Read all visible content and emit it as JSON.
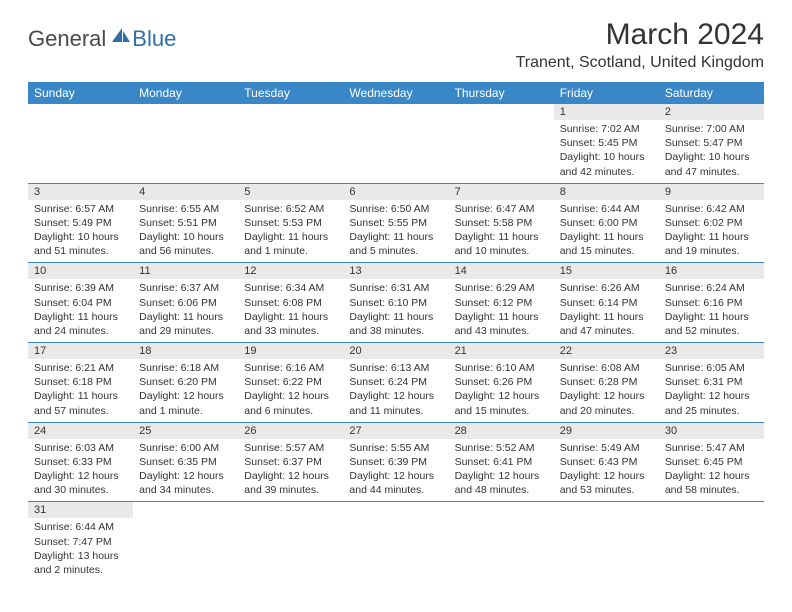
{
  "colors": {
    "header_bg": "#3a87c7",
    "header_text": "#ffffff",
    "daynum_bg": "#e9e9e9",
    "cell_border": "#3a87c7",
    "logo_blue": "#2f6fa8",
    "body_text": "#333333"
  },
  "logo": {
    "general": "General",
    "blue": "Blue"
  },
  "title": "March 2024",
  "location": "Tranent, Scotland, United Kingdom",
  "weekdays": [
    "Sunday",
    "Monday",
    "Tuesday",
    "Wednesday",
    "Thursday",
    "Friday",
    "Saturday"
  ],
  "weeks": [
    [
      null,
      null,
      null,
      null,
      null,
      {
        "num": "1",
        "sunrise": "Sunrise: 7:02 AM",
        "sunset": "Sunset: 5:45 PM",
        "daylight": "Daylight: 10 hours and 42 minutes."
      },
      {
        "num": "2",
        "sunrise": "Sunrise: 7:00 AM",
        "sunset": "Sunset: 5:47 PM",
        "daylight": "Daylight: 10 hours and 47 minutes."
      }
    ],
    [
      {
        "num": "3",
        "sunrise": "Sunrise: 6:57 AM",
        "sunset": "Sunset: 5:49 PM",
        "daylight": "Daylight: 10 hours and 51 minutes."
      },
      {
        "num": "4",
        "sunrise": "Sunrise: 6:55 AM",
        "sunset": "Sunset: 5:51 PM",
        "daylight": "Daylight: 10 hours and 56 minutes."
      },
      {
        "num": "5",
        "sunrise": "Sunrise: 6:52 AM",
        "sunset": "Sunset: 5:53 PM",
        "daylight": "Daylight: 11 hours and 1 minute."
      },
      {
        "num": "6",
        "sunrise": "Sunrise: 6:50 AM",
        "sunset": "Sunset: 5:55 PM",
        "daylight": "Daylight: 11 hours and 5 minutes."
      },
      {
        "num": "7",
        "sunrise": "Sunrise: 6:47 AM",
        "sunset": "Sunset: 5:58 PM",
        "daylight": "Daylight: 11 hours and 10 minutes."
      },
      {
        "num": "8",
        "sunrise": "Sunrise: 6:44 AM",
        "sunset": "Sunset: 6:00 PM",
        "daylight": "Daylight: 11 hours and 15 minutes."
      },
      {
        "num": "9",
        "sunrise": "Sunrise: 6:42 AM",
        "sunset": "Sunset: 6:02 PM",
        "daylight": "Daylight: 11 hours and 19 minutes."
      }
    ],
    [
      {
        "num": "10",
        "sunrise": "Sunrise: 6:39 AM",
        "sunset": "Sunset: 6:04 PM",
        "daylight": "Daylight: 11 hours and 24 minutes."
      },
      {
        "num": "11",
        "sunrise": "Sunrise: 6:37 AM",
        "sunset": "Sunset: 6:06 PM",
        "daylight": "Daylight: 11 hours and 29 minutes."
      },
      {
        "num": "12",
        "sunrise": "Sunrise: 6:34 AM",
        "sunset": "Sunset: 6:08 PM",
        "daylight": "Daylight: 11 hours and 33 minutes."
      },
      {
        "num": "13",
        "sunrise": "Sunrise: 6:31 AM",
        "sunset": "Sunset: 6:10 PM",
        "daylight": "Daylight: 11 hours and 38 minutes."
      },
      {
        "num": "14",
        "sunrise": "Sunrise: 6:29 AM",
        "sunset": "Sunset: 6:12 PM",
        "daylight": "Daylight: 11 hours and 43 minutes."
      },
      {
        "num": "15",
        "sunrise": "Sunrise: 6:26 AM",
        "sunset": "Sunset: 6:14 PM",
        "daylight": "Daylight: 11 hours and 47 minutes."
      },
      {
        "num": "16",
        "sunrise": "Sunrise: 6:24 AM",
        "sunset": "Sunset: 6:16 PM",
        "daylight": "Daylight: 11 hours and 52 minutes."
      }
    ],
    [
      {
        "num": "17",
        "sunrise": "Sunrise: 6:21 AM",
        "sunset": "Sunset: 6:18 PM",
        "daylight": "Daylight: 11 hours and 57 minutes."
      },
      {
        "num": "18",
        "sunrise": "Sunrise: 6:18 AM",
        "sunset": "Sunset: 6:20 PM",
        "daylight": "Daylight: 12 hours and 1 minute."
      },
      {
        "num": "19",
        "sunrise": "Sunrise: 6:16 AM",
        "sunset": "Sunset: 6:22 PM",
        "daylight": "Daylight: 12 hours and 6 minutes."
      },
      {
        "num": "20",
        "sunrise": "Sunrise: 6:13 AM",
        "sunset": "Sunset: 6:24 PM",
        "daylight": "Daylight: 12 hours and 11 minutes."
      },
      {
        "num": "21",
        "sunrise": "Sunrise: 6:10 AM",
        "sunset": "Sunset: 6:26 PM",
        "daylight": "Daylight: 12 hours and 15 minutes."
      },
      {
        "num": "22",
        "sunrise": "Sunrise: 6:08 AM",
        "sunset": "Sunset: 6:28 PM",
        "daylight": "Daylight: 12 hours and 20 minutes."
      },
      {
        "num": "23",
        "sunrise": "Sunrise: 6:05 AM",
        "sunset": "Sunset: 6:31 PM",
        "daylight": "Daylight: 12 hours and 25 minutes."
      }
    ],
    [
      {
        "num": "24",
        "sunrise": "Sunrise: 6:03 AM",
        "sunset": "Sunset: 6:33 PM",
        "daylight": "Daylight: 12 hours and 30 minutes."
      },
      {
        "num": "25",
        "sunrise": "Sunrise: 6:00 AM",
        "sunset": "Sunset: 6:35 PM",
        "daylight": "Daylight: 12 hours and 34 minutes."
      },
      {
        "num": "26",
        "sunrise": "Sunrise: 5:57 AM",
        "sunset": "Sunset: 6:37 PM",
        "daylight": "Daylight: 12 hours and 39 minutes."
      },
      {
        "num": "27",
        "sunrise": "Sunrise: 5:55 AM",
        "sunset": "Sunset: 6:39 PM",
        "daylight": "Daylight: 12 hours and 44 minutes."
      },
      {
        "num": "28",
        "sunrise": "Sunrise: 5:52 AM",
        "sunset": "Sunset: 6:41 PM",
        "daylight": "Daylight: 12 hours and 48 minutes."
      },
      {
        "num": "29",
        "sunrise": "Sunrise: 5:49 AM",
        "sunset": "Sunset: 6:43 PM",
        "daylight": "Daylight: 12 hours and 53 minutes."
      },
      {
        "num": "30",
        "sunrise": "Sunrise: 5:47 AM",
        "sunset": "Sunset: 6:45 PM",
        "daylight": "Daylight: 12 hours and 58 minutes."
      }
    ],
    [
      {
        "num": "31",
        "sunrise": "Sunrise: 6:44 AM",
        "sunset": "Sunset: 7:47 PM",
        "daylight": "Daylight: 13 hours and 2 minutes."
      },
      null,
      null,
      null,
      null,
      null,
      null
    ]
  ]
}
